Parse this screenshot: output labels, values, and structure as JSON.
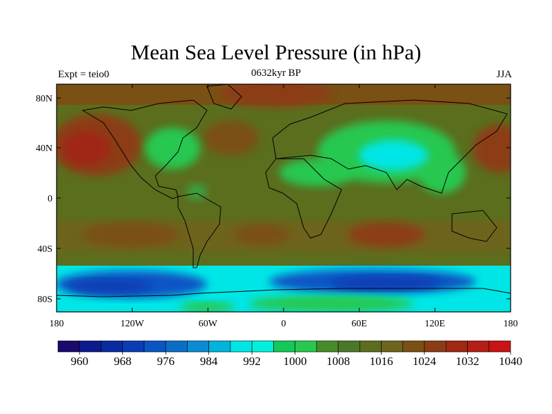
{
  "title": "Mean Sea Level Pressure (in hPa)",
  "subtitle_left": "Expt = teio0",
  "subtitle_center": "0632kyr BP",
  "subtitle_right": "JJA",
  "lat_ticks": [
    "80N",
    "40N",
    "0",
    "40S",
    "80S"
  ],
  "lon_ticks": [
    "180",
    "120W",
    "60W",
    "0",
    "60E",
    "120E",
    "180"
  ],
  "colorbar": {
    "labels": [
      "960",
      "968",
      "976",
      "984",
      "992",
      "1000",
      "1008",
      "1016",
      "1024",
      "1032",
      "1040"
    ],
    "colors": [
      "#1a0a6e",
      "#0d1a8c",
      "#0a2aa0",
      "#0a3cb4",
      "#0a55c4",
      "#0a6ec8",
      "#0a8cd2",
      "#00b4dc",
      "#00e6e6",
      "#00f0dc",
      "#14c85a",
      "#28c850",
      "#468c28",
      "#4a7828",
      "#5a6e1e",
      "#6e641e",
      "#7a5014",
      "#8c3c14",
      "#a02814",
      "#b41e14",
      "#c81414"
    ]
  },
  "colors": {
    "high": "#8c3c14",
    "mid": "#5a6e1e",
    "green": "#28c850",
    "cyan": "#00e6e6",
    "low": "#0a55c4",
    "coast": "#000000"
  }
}
